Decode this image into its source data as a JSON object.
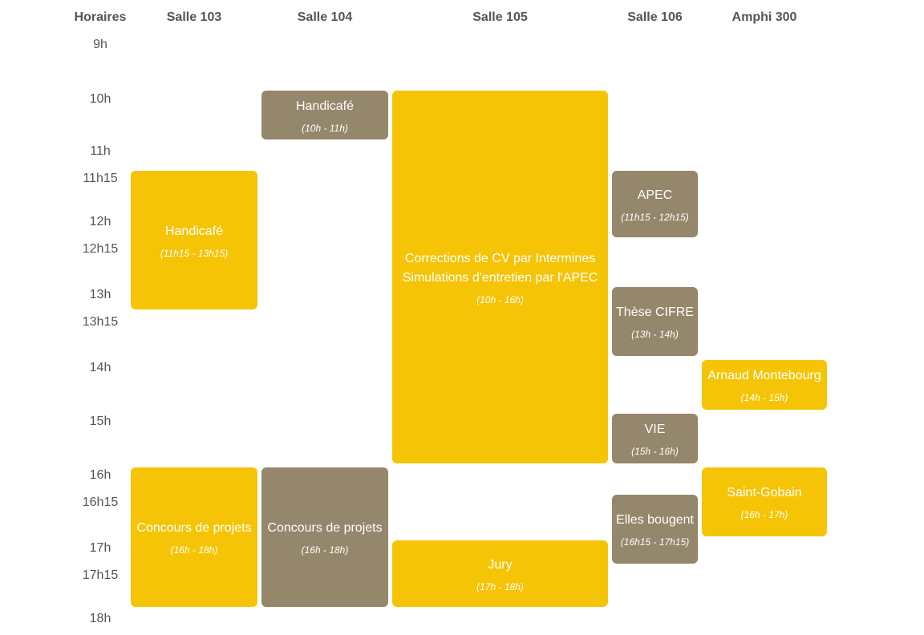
{
  "headers": {
    "horaires": "Horaires",
    "salle103": "Salle 103",
    "salle104": "Salle 104",
    "salle105": "Salle 105",
    "salle106": "Salle 106",
    "amphi300": "Amphi 300"
  },
  "times": [
    "9h",
    "10h",
    "11h",
    "11h15",
    "12h",
    "12h15",
    "13h",
    "13h15",
    "14h",
    "15h",
    "16h",
    "16h15",
    "17h",
    "17h15",
    "18h"
  ],
  "events": {
    "s103_handicafe": {
      "title": "Handicafé",
      "hours": "(11h15 - 13h15)",
      "color": "#f5c406"
    },
    "s103_concours": {
      "title": "Concours de projets",
      "hours": "(16h - 18h)",
      "color": "#f5c406"
    },
    "s104_handicafe": {
      "title": "Handicafé",
      "hours": "(10h - 11h)",
      "color": "#95876b"
    },
    "s104_concours": {
      "title": "Concours de projets",
      "hours": "(16h - 18h)",
      "color": "#95876b"
    },
    "s105_corrections": {
      "title": "Corrections de CV par Intermines\nSimulations d'entretien par l'APEC",
      "hours": "(10h - 16h)",
      "color": "#f5c406"
    },
    "s105_jury": {
      "title": "Jury",
      "hours": "(17h - 18h)",
      "color": "#f5c406"
    },
    "s106_apec": {
      "title": "APEC",
      "hours": "(11h15 - 12h15)",
      "color": "#95876b"
    },
    "s106_these": {
      "title": "Thèse CIFRE",
      "hours": "(13h - 14h)",
      "color": "#95876b"
    },
    "s106_vie": {
      "title": "VIE",
      "hours": "(15h - 16h)",
      "color": "#95876b"
    },
    "s106_elles": {
      "title": "Elles bougent",
      "hours": "(16h15 - 17h15)",
      "color": "#95876b"
    },
    "a300_montebourg": {
      "title": "Arnaud Montebourg",
      "hours": "(14h - 15h)",
      "color": "#f5c406"
    },
    "a300_saintgobain": {
      "title": "Saint-Gobain",
      "hours": "(16h - 17h)",
      "color": "#f5c406"
    }
  }
}
